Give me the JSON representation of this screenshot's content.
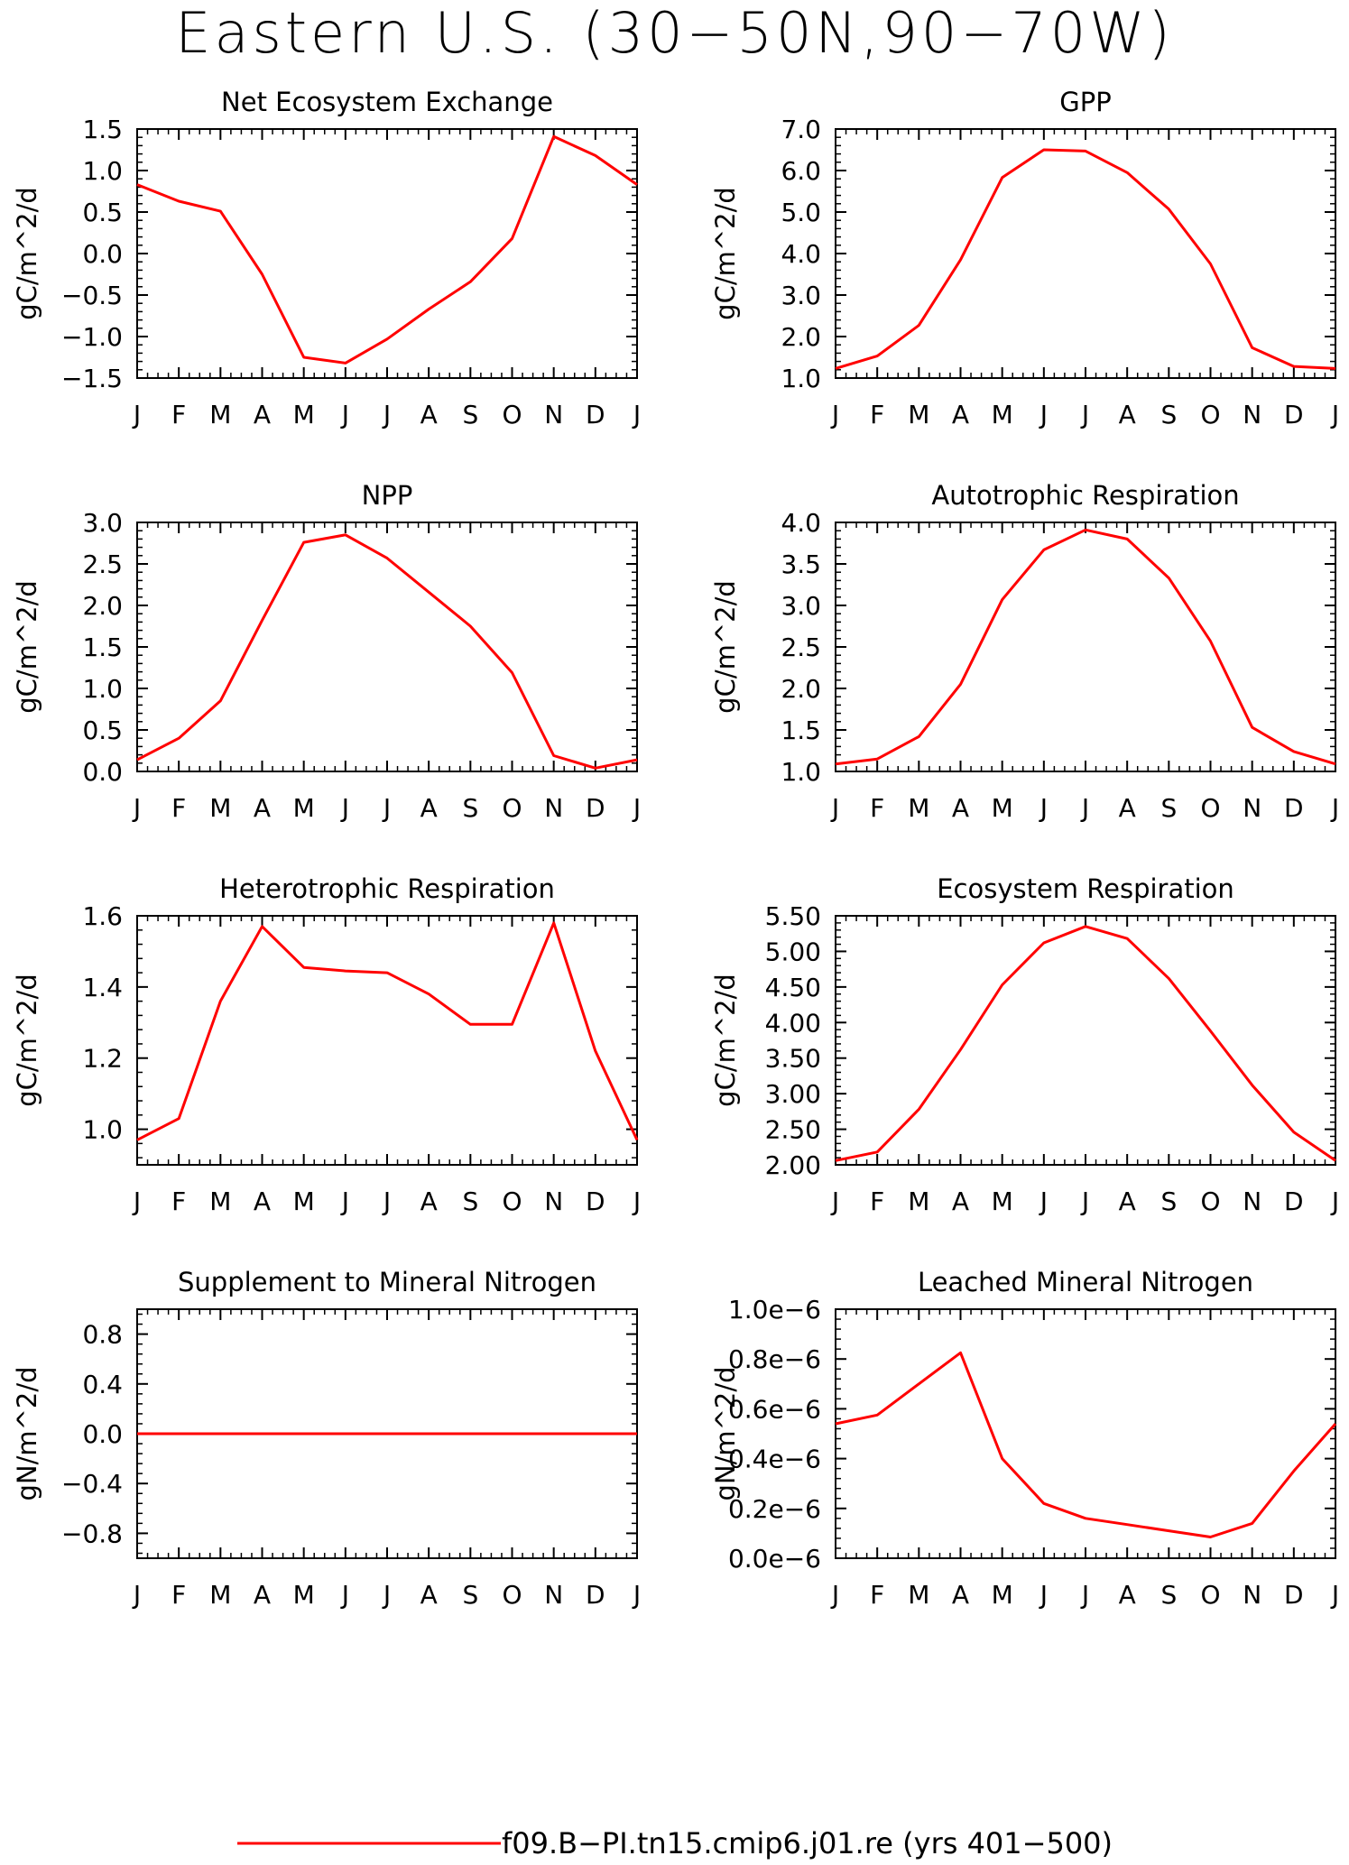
{
  "page": {
    "title": "Eastern U.S. (30−50N,90−70W)",
    "line_color": "#ff0000",
    "legend_label": "f09.B−PI.tn15.cmip6.j01.re (yrs 401−500)"
  },
  "chart_data": [
    {
      "type": "line",
      "title": "Net Ecosystem Exchange",
      "ylabel": "gC/m^2/d",
      "x": [
        "J",
        "F",
        "M",
        "A",
        "M",
        "J",
        "J",
        "A",
        "S",
        "O",
        "N",
        "D",
        "J"
      ],
      "ylim": [
        -1.5,
        1.5
      ],
      "yticks": [
        -1.5,
        -1.0,
        -0.5,
        0.0,
        0.5,
        1.0,
        1.5
      ],
      "ytick_labels": [
        "−1.5",
        "−1.0",
        "−0.5",
        "0.0",
        "0.5",
        "1.0",
        "1.5"
      ],
      "series": [
        {
          "values": [
            0.83,
            0.63,
            0.51,
            -0.25,
            -1.25,
            -1.32,
            -1.03,
            -0.67,
            -0.34,
            0.18,
            1.41,
            1.18,
            0.83
          ]
        }
      ]
    },
    {
      "type": "line",
      "title": "GPP",
      "ylabel": "gC/m^2/d",
      "x": [
        "J",
        "F",
        "M",
        "A",
        "M",
        "J",
        "J",
        "A",
        "S",
        "O",
        "N",
        "D",
        "J"
      ],
      "ylim": [
        1.0,
        7.0
      ],
      "yticks": [
        1.0,
        2.0,
        3.0,
        4.0,
        5.0,
        6.0,
        7.0
      ],
      "ytick_labels": [
        "1.0",
        "2.0",
        "3.0",
        "4.0",
        "5.0",
        "6.0",
        "7.0"
      ],
      "series": [
        {
          "values": [
            1.23,
            1.53,
            2.27,
            3.85,
            5.83,
            6.5,
            6.47,
            5.95,
            5.07,
            3.75,
            1.73,
            1.28,
            1.23
          ]
        }
      ]
    },
    {
      "type": "line",
      "title": "NPP",
      "ylabel": "gC/m^2/d",
      "x": [
        "J",
        "F",
        "M",
        "A",
        "M",
        "J",
        "J",
        "A",
        "S",
        "O",
        "N",
        "D",
        "J"
      ],
      "ylim": [
        0.0,
        3.0
      ],
      "yticks": [
        0.0,
        0.5,
        1.0,
        1.5,
        2.0,
        2.5,
        3.0
      ],
      "ytick_labels": [
        "0.0",
        "0.5",
        "1.0",
        "1.5",
        "2.0",
        "2.5",
        "3.0"
      ],
      "series": [
        {
          "values": [
            0.14,
            0.4,
            0.85,
            1.82,
            2.76,
            2.85,
            2.57,
            2.16,
            1.75,
            1.19,
            0.19,
            0.04,
            0.14
          ]
        }
      ]
    },
    {
      "type": "line",
      "title": "Autotrophic Respiration",
      "ylabel": "gC/m^2/d",
      "x": [
        "J",
        "F",
        "M",
        "A",
        "M",
        "J",
        "J",
        "A",
        "S",
        "O",
        "N",
        "D",
        "J"
      ],
      "ylim": [
        1.0,
        4.0
      ],
      "yticks": [
        1.0,
        1.5,
        2.0,
        2.5,
        3.0,
        3.5,
        4.0
      ],
      "ytick_labels": [
        "1.0",
        "1.5",
        "2.0",
        "2.5",
        "3.0",
        "3.5",
        "4.0"
      ],
      "series": [
        {
          "values": [
            1.09,
            1.15,
            1.42,
            2.05,
            3.07,
            3.67,
            3.91,
            3.8,
            3.33,
            2.57,
            1.53,
            1.24,
            1.09
          ]
        }
      ]
    },
    {
      "type": "line",
      "title": "Heterotrophic Respiration",
      "ylabel": "gC/m^2/d",
      "x": [
        "J",
        "F",
        "M",
        "A",
        "M",
        "J",
        "J",
        "A",
        "S",
        "O",
        "N",
        "D",
        "J"
      ],
      "ylim": [
        0.9,
        1.6
      ],
      "yticks": [
        1.0,
        1.2,
        1.4,
        1.6
      ],
      "ytick_labels": [
        "1.0",
        "1.2",
        "1.4",
        "1.6"
      ],
      "series": [
        {
          "values": [
            0.97,
            1.03,
            1.36,
            1.57,
            1.455,
            1.445,
            1.44,
            1.38,
            1.295,
            1.295,
            1.58,
            1.22,
            0.97
          ]
        }
      ]
    },
    {
      "type": "line",
      "title": "Ecosystem Respiration",
      "ylabel": "gC/m^2/d",
      "x": [
        "J",
        "F",
        "M",
        "A",
        "M",
        "J",
        "J",
        "A",
        "S",
        "O",
        "N",
        "D",
        "J"
      ],
      "ylim": [
        2.0,
        5.5
      ],
      "yticks": [
        2.0,
        2.5,
        3.0,
        3.5,
        4.0,
        4.5,
        5.0,
        5.5
      ],
      "ytick_labels": [
        "2.00",
        "2.50",
        "3.00",
        "3.50",
        "4.00",
        "4.50",
        "5.00",
        "5.50"
      ],
      "series": [
        {
          "values": [
            2.06,
            2.18,
            2.78,
            3.62,
            4.53,
            5.12,
            5.35,
            5.18,
            4.62,
            3.88,
            3.12,
            2.46,
            2.06
          ]
        }
      ]
    },
    {
      "type": "line",
      "title": "Supplement to Mineral Nitrogen",
      "ylabel": "gN/m^2/d",
      "x": [
        "J",
        "F",
        "M",
        "A",
        "M",
        "J",
        "J",
        "A",
        "S",
        "O",
        "N",
        "D",
        "J"
      ],
      "ylim": [
        -1.0,
        1.0
      ],
      "yticks": [
        -0.8,
        -0.4,
        0.0,
        0.4,
        0.8
      ],
      "ytick_labels": [
        "−0.8",
        "−0.4",
        "0.0",
        "0.4",
        "0.8"
      ],
      "series": [
        {
          "values": [
            0,
            0,
            0,
            0,
            0,
            0,
            0,
            0,
            0,
            0,
            0,
            0,
            0
          ]
        }
      ]
    },
    {
      "type": "line",
      "title": "Leached Mineral Nitrogen",
      "ylabel": "gN/m^2/d",
      "x": [
        "J",
        "F",
        "M",
        "A",
        "M",
        "J",
        "J",
        "A",
        "S",
        "O",
        "N",
        "D",
        "J"
      ],
      "ylim": [
        0.0,
        1e-06
      ],
      "yticks": [
        0.0,
        2e-07,
        4e-07,
        6e-07,
        8e-07,
        1e-06
      ],
      "ytick_labels": [
        "0.0e−6",
        "0.2e−6",
        "0.4e−6",
        "0.6e−6",
        "0.8e−6",
        "1.0e−6"
      ],
      "series": [
        {
          "values": [
            5.4e-07,
            5.75e-07,
            7e-07,
            8.25e-07,
            4e-07,
            2.2e-07,
            1.6e-07,
            1.35e-07,
            1.1e-07,
            8.5e-08,
            1.4e-07,
            3.5e-07,
            5.4e-07
          ]
        }
      ]
    }
  ]
}
